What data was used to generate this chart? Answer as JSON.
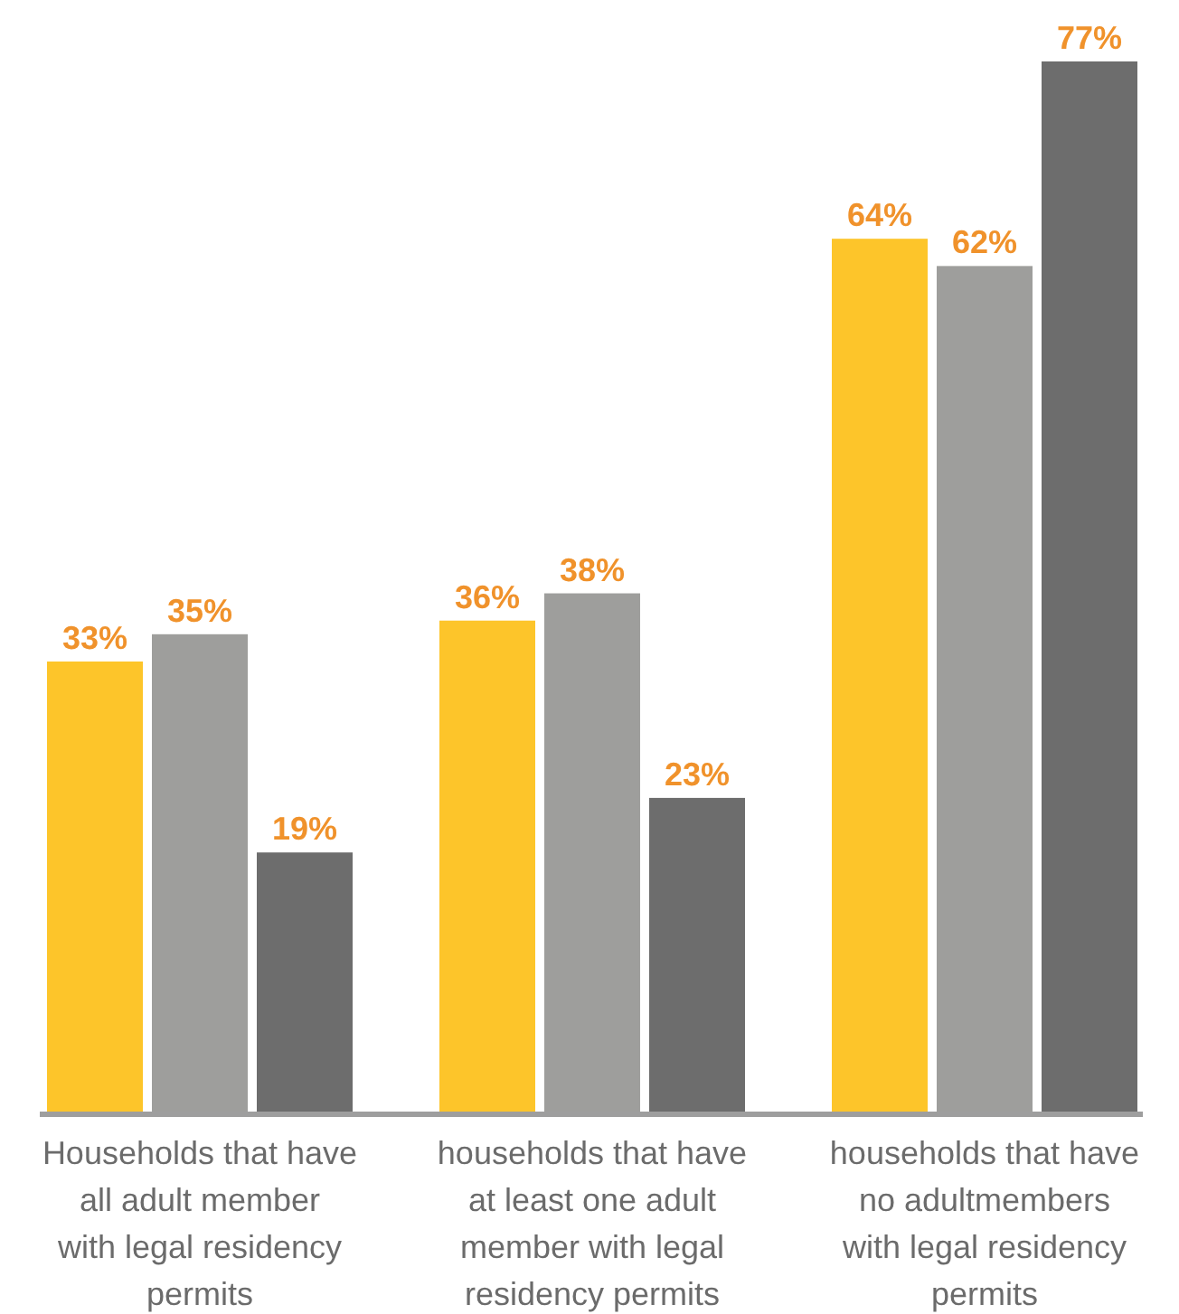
{
  "chart_data": {
    "type": "bar",
    "categories": [
      "Households that have\nall adult member\nwith legal residency\npermits",
      "households that have\nat least one adult\nmember with legal\nresidency permits",
      "households that have\nno adultmembers\nwith legal residency\npermits"
    ],
    "series": [
      {
        "color": "#fdc52a",
        "values": [
          33,
          36,
          64
        ],
        "value_labels": [
          "33%",
          "36%",
          "64%"
        ]
      },
      {
        "color": "#9e9e9c",
        "values": [
          35,
          38,
          62
        ],
        "value_labels": [
          "35%",
          "38%",
          "62%"
        ]
      },
      {
        "color": "#6d6d6d",
        "values": [
          19,
          23,
          77
        ],
        "value_labels": [
          "19%",
          "23%",
          "77%"
        ]
      }
    ],
    "tick_labels": "x"
  }
}
